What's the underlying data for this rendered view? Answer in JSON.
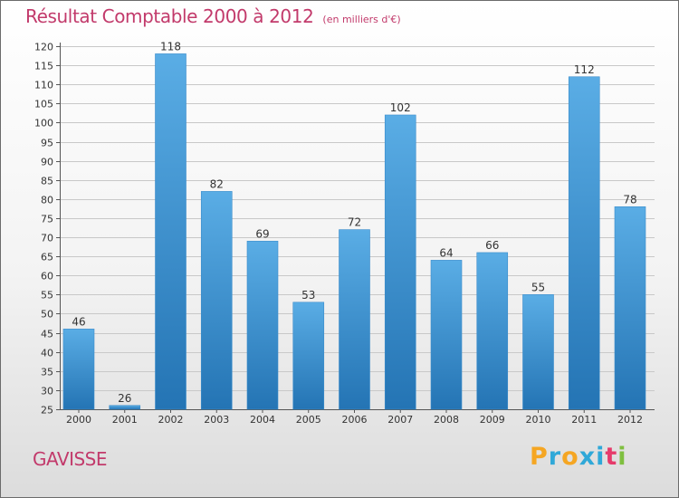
{
  "header": {
    "title": "Résultat Comptable 2000 à 2012",
    "subtitle": "(en milliers d'€)"
  },
  "footer": {
    "commune": "GAVISSE",
    "logo_text": "Proxiti",
    "logo_letters": [
      {
        "ch": "P",
        "color": "#f5a623"
      },
      {
        "ch": "r",
        "color": "#2fa8d8"
      },
      {
        "ch": "o",
        "color": "#f5a623"
      },
      {
        "ch": "x",
        "color": "#2fa8d8"
      },
      {
        "ch": "i",
        "color": "#2fa8d8"
      },
      {
        "ch": "t",
        "color": "#e63b6b"
      },
      {
        "ch": "i",
        "color": "#7fbf3f"
      }
    ]
  },
  "colors": {
    "title": "#c23a6b",
    "bar_light": "#5aade5",
    "bar_dark": "#2474b4",
    "grid": "#c8c8c8"
  },
  "chart_data": {
    "type": "bar",
    "title": "Résultat Comptable 2000 à 2012",
    "subtitle": "(en milliers d'€)",
    "xlabel": "",
    "ylabel": "",
    "categories": [
      "2000",
      "2001",
      "2002",
      "2003",
      "2004",
      "2005",
      "2006",
      "2007",
      "2008",
      "2009",
      "2010",
      "2011",
      "2012"
    ],
    "values": [
      46,
      26,
      118,
      82,
      69,
      53,
      72,
      102,
      64,
      66,
      55,
      112,
      78
    ],
    "ylim": [
      25,
      120
    ],
    "ytick_step": 5,
    "grid": true,
    "legend": "none"
  }
}
